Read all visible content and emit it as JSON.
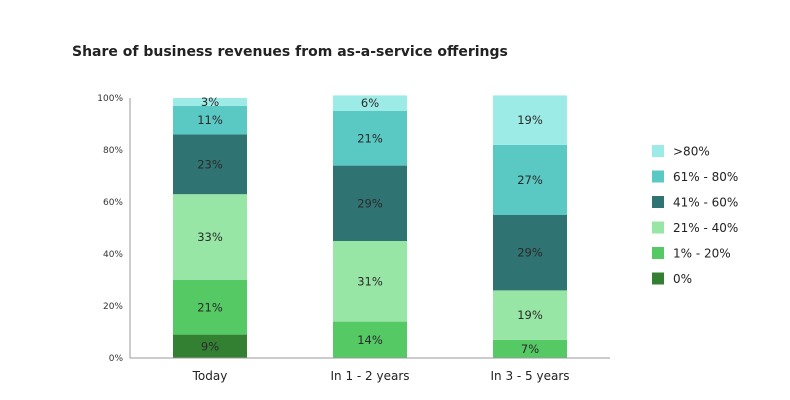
{
  "chart_data": {
    "type": "bar",
    "stacked": true,
    "title": "Share of business revenues from as-a-service offerings",
    "xlabel": "",
    "ylabel": "",
    "ylim": [
      0,
      100
    ],
    "y_ticks": [
      "0%",
      "20%",
      "40%",
      "60%",
      "80%",
      "100%"
    ],
    "categories": [
      "Today",
      "In 1 - 2 years",
      "In 3 - 5 years"
    ],
    "series": [
      {
        "name": "0%",
        "values": [
          9,
          0,
          0
        ],
        "color": "#338033"
      },
      {
        "name": "1% - 20%",
        "values": [
          21,
          14,
          7
        ],
        "color": "#54c964"
      },
      {
        "name": "21% - 40%",
        "values": [
          33,
          31,
          19
        ],
        "color": "#98e6a5"
      },
      {
        "name": "41% - 60%",
        "values": [
          23,
          29,
          29
        ],
        "color": "#2f7372"
      },
      {
        "name": "61% - 80%",
        "values": [
          11,
          21,
          27
        ],
        "color": "#5ac8c3"
      },
      {
        "name": ">80%",
        "values": [
          3,
          6,
          19
        ],
        "color": "#9debe7"
      }
    ],
    "data_labels": [
      [
        "9%",
        "21%",
        "33%",
        "23%",
        "11%",
        "3%"
      ],
      [
        "",
        "14%",
        "31%",
        "29%",
        "21%",
        "6%"
      ],
      [
        "",
        "7%",
        "19%",
        "29%",
        "27%",
        "19%"
      ]
    ],
    "legend_position": "right",
    "grid": false
  }
}
